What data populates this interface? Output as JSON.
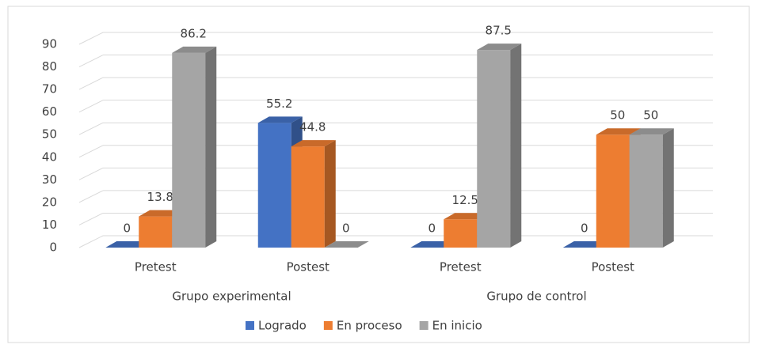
{
  "chart_data": {
    "type": "bar3d",
    "categories": [
      "Pretest",
      "Postest",
      "Pretest",
      "Postest"
    ],
    "groups": [
      "Grupo experimental",
      "Grupo de control"
    ],
    "series": [
      {
        "name": "Logrado",
        "color": "#4472c4",
        "values": [
          0,
          55.2,
          0,
          0
        ]
      },
      {
        "name": "En proceso",
        "color": "#ed7d31",
        "values": [
          13.8,
          44.8,
          12.5,
          50
        ]
      },
      {
        "name": "En inicio",
        "color": "#a5a5a5",
        "values": [
          86.2,
          0,
          87.5,
          50
        ]
      }
    ],
    "ylim": [
      0,
      90
    ],
    "yticks": [
      0,
      10,
      20,
      30,
      40,
      50,
      60,
      70,
      80,
      90
    ],
    "grid": true,
    "legend": "bottom"
  }
}
